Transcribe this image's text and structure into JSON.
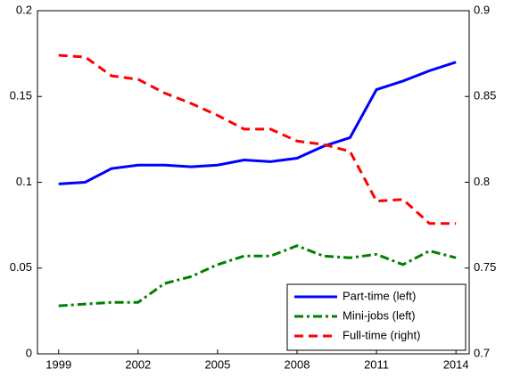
{
  "chart_data": {
    "type": "line",
    "x": [
      1999,
      2000,
      2001,
      2002,
      2003,
      2004,
      2005,
      2006,
      2007,
      2008,
      2009,
      2010,
      2011,
      2012,
      2013,
      2014
    ],
    "xlim": [
      1998.2,
      2014.5
    ],
    "xticks": [
      1999,
      2002,
      2005,
      2008,
      2011,
      2014
    ],
    "ylim": [
      0,
      0.2
    ],
    "yticks": [
      0,
      0.05,
      0.1,
      0.15,
      0.2
    ],
    "y2lim": [
      0.7,
      0.9
    ],
    "y2ticks": [
      0.7,
      0.75,
      0.8,
      0.85,
      0.9
    ],
    "legend": "lower-right",
    "series": [
      {
        "name": "Part-time (left)",
        "color": "#0000ff",
        "dash": "solid",
        "values": [
          0.099,
          0.1,
          0.108,
          0.11,
          0.11,
          0.109,
          0.11,
          0.113,
          0.112,
          0.114,
          0.121,
          0.126,
          0.154,
          0.159,
          0.165,
          0.17
        ]
      },
      {
        "name": "Mini-jobs (left)",
        "color": "#008000",
        "dash": "dashdot",
        "values": [
          0.028,
          0.029,
          0.03,
          0.03,
          0.041,
          0.045,
          0.052,
          0.057,
          0.057,
          0.063,
          0.057,
          0.056,
          0.058,
          0.052,
          0.06,
          0.056
        ]
      },
      {
        "name": "Full-time (right)",
        "color": "#ff0000",
        "dash": "dashed",
        "axis": "y2",
        "values": [
          0.874,
          0.873,
          0.862,
          0.86,
          0.852,
          0.846,
          0.839,
          0.831,
          0.831,
          0.824,
          0.822,
          0.818,
          0.789,
          0.79,
          0.776,
          0.776
        ]
      }
    ]
  }
}
